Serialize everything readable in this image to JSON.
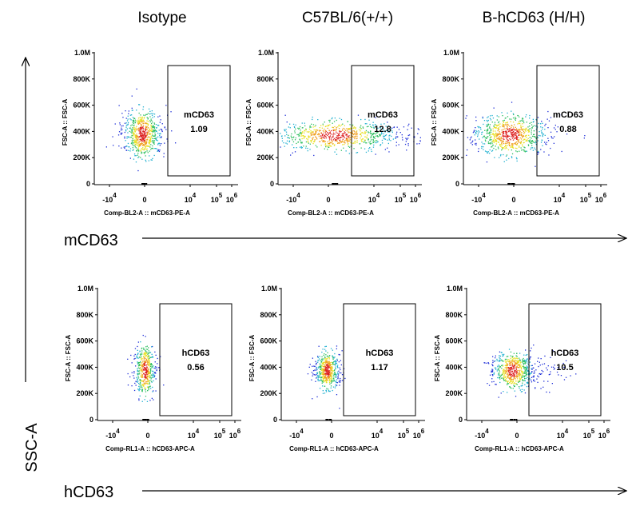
{
  "columns": [
    "Isotype",
    "C57BL/6(+/+)",
    "B-hCD63 (H/H)"
  ],
  "y_axis_label": "SSC-A",
  "yticks": [
    "1.0M",
    "800K",
    "600K",
    "400K",
    "200K",
    "0"
  ],
  "xticks": [
    {
      "base": "-10",
      "exp": "4"
    },
    {
      "base": "0"
    },
    {
      "base": "10",
      "exp": "4"
    },
    {
      "base": "10",
      "exp": "5"
    },
    {
      "base": "10",
      "exp": "6"
    }
  ],
  "panel_y_label": "FSC-A :: FSC-A",
  "rows": [
    {
      "label": "mCD63",
      "x_label": "Comp-BL2-A :: mCD63-PE-A",
      "gate": "mCD63",
      "values": [
        "1.09",
        "12.8",
        "0.88"
      ]
    },
    {
      "label": "hCD63",
      "x_label": "Comp-RL1-A :: hCD63-APC-A",
      "gate": "hCD63",
      "values": [
        "0.56",
        "1.17",
        "10.5"
      ]
    }
  ]
}
